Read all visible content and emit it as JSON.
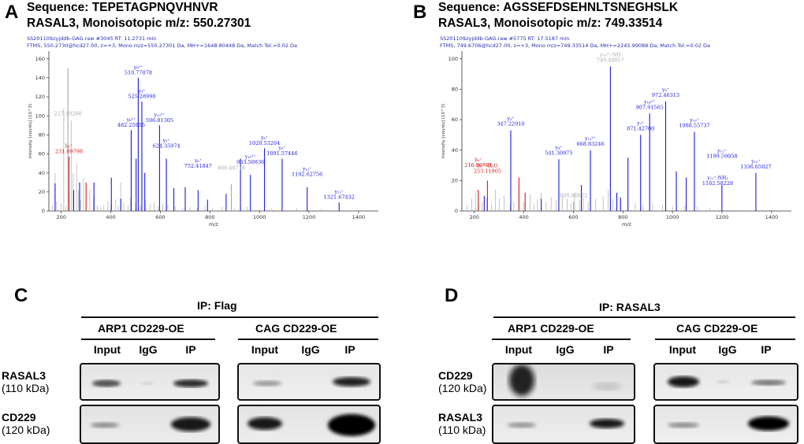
{
  "panels": {
    "A": {
      "letter": "A",
      "line1": "Sequence: TEPETAGPNQVHNVR",
      "line2": "RASAL3, Monoisotopic m/z: 550.27301",
      "header1": "SS201109zyjddb-GAG.raw  #3045  RT: 11.2731 min",
      "header2": "FTMS, 550.2730@hcd27.00, z=+3, Mono m/z=550.27301 Da, MH+=1648.80448 Da, Match Tol.=0.02 Da",
      "ylabel": "Intensity [counts] (10^3)",
      "xlabel": "m/z"
    },
    "B": {
      "letter": "B",
      "line1": "Sequence: AGSSEFDSEHNLTSNEGHSLK",
      "line2": "RASAL3, Monoisotopic m/z: 749.33514",
      "header1": "SS201109zyjddb-GAG.raw  #5775  RT: 17.5187 min",
      "header2": "FTMS, 749.6706@hcd27.00, z=+3, Mono m/z=749.33514 Da, MH+=2245.99088 Da, Match Tol.=0.02 Da",
      "ylabel": "Intensity [counts] (10^3)",
      "xlabel": "m/z"
    },
    "C": {
      "letter": "C",
      "ip_title": "IP: Flag",
      "groups": [
        "ARP1 CD229-OE",
        "CAG CD229-OE"
      ],
      "lanes": [
        "Input",
        "IgG",
        "IP"
      ],
      "rows": [
        {
          "protein": "RASAL3",
          "kda": "(110 kDa)"
        },
        {
          "protein": "CD229",
          "kda": "(120 kDa)"
        }
      ]
    },
    "D": {
      "letter": "D",
      "ip_title": "IP: RASAL3",
      "groups": [
        "ARP1 CD229-OE",
        "CAG CD229-OE"
      ],
      "lanes": [
        "Input",
        "IgG",
        "IP"
      ],
      "rows": [
        {
          "protein": "CD229",
          "kda": "(120 kDa)"
        },
        {
          "protein": "RASAL3",
          "kda": "(110 kDa)"
        }
      ]
    }
  },
  "chart_data": [
    {
      "type": "bar",
      "panel": "A",
      "xlim": [
        150,
        1480
      ],
      "ylim": [
        0,
        168
      ],
      "xticks": [
        200,
        400,
        600,
        800,
        1000,
        1200,
        1400
      ],
      "yticks": [
        0,
        20,
        40,
        60,
        80,
        100,
        120,
        140,
        160
      ],
      "background_peaks": [
        [
          165,
          6
        ],
        [
          175,
          40
        ],
        [
          182,
          10
        ],
        [
          200,
          8
        ],
        [
          210,
          108
        ],
        [
          218,
          5
        ],
        [
          232,
          14
        ],
        [
          240,
          95
        ],
        [
          248,
          40
        ],
        [
          262,
          50
        ],
        [
          270,
          22
        ],
        [
          278,
          12
        ],
        [
          290,
          35
        ],
        [
          300,
          8
        ],
        [
          315,
          22
        ],
        [
          330,
          15
        ],
        [
          345,
          6
        ],
        [
          360,
          4
        ],
        [
          372,
          6
        ],
        [
          388,
          10
        ],
        [
          400,
          7
        ],
        [
          420,
          12
        ],
        [
          430,
          5
        ],
        [
          440,
          30
        ],
        [
          452,
          8
        ],
        [
          470,
          6
        ],
        [
          480,
          14
        ],
        [
          500,
          9
        ],
        [
          520,
          6
        ],
        [
          540,
          12
        ],
        [
          560,
          7
        ],
        [
          575,
          9
        ],
        [
          590,
          5
        ],
        [
          610,
          8
        ],
        [
          630,
          6
        ],
        [
          660,
          5
        ],
        [
          690,
          3
        ],
        [
          720,
          4
        ],
        [
          750,
          3
        ],
        [
          780,
          5
        ],
        [
          810,
          3
        ],
        [
          850,
          4
        ],
        [
          900,
          3
        ],
        [
          950,
          4
        ],
        [
          1050,
          3
        ],
        [
          1150,
          3
        ],
        [
          1250,
          2
        ]
      ],
      "peaks": [
        {
          "mz": 175.1,
          "y": 29,
          "color": "blue",
          "label": "y₁"
        },
        {
          "mz": 227.1,
          "y": 150,
          "color": "gray",
          "label": ""
        },
        {
          "mz": 231.1,
          "y": 57,
          "color": "red",
          "label": ""
        },
        {
          "mz": 250.1,
          "y": 22,
          "color": "blue",
          "label": "y₂"
        },
        {
          "mz": 274.1,
          "y": 30,
          "color": "blue",
          "label": "y₂"
        },
        {
          "mz": 300.1,
          "y": 30,
          "color": "red",
          "label": ""
        },
        {
          "mz": 332.1,
          "y": 30,
          "color": "blue",
          "label": ""
        },
        {
          "mz": 402.2,
          "y": 35,
          "color": "blue",
          "label": ""
        },
        {
          "mz": 440.2,
          "y": 13,
          "color": "blue",
          "label": ""
        },
        {
          "mz": 482.3,
          "y": 85,
          "color": "blue",
          "label": ""
        },
        {
          "mz": 502.2,
          "y": 55,
          "color": "blue",
          "label": ""
        },
        {
          "mz": 510.8,
          "y": 140,
          "color": "blue",
          "label": ""
        },
        {
          "mz": 525.3,
          "y": 115,
          "color": "blue",
          "label": ""
        },
        {
          "mz": 537.2,
          "y": 40,
          "color": "blue",
          "label": ""
        },
        {
          "mz": 596.8,
          "y": 90,
          "color": "blue",
          "label": ""
        },
        {
          "mz": 624.4,
          "y": 55,
          "color": "blue",
          "label": ""
        },
        {
          "mz": 654.4,
          "y": 24,
          "color": "blue",
          "label": ""
        },
        {
          "mz": 700.4,
          "y": 25,
          "color": "blue",
          "label": ""
        },
        {
          "mz": 752.4,
          "y": 22,
          "color": "blue",
          "label": ""
        },
        {
          "mz": 790.4,
          "y": 12,
          "color": "blue",
          "label": ""
        },
        {
          "mz": 865.4,
          "y": 18,
          "color": "blue",
          "label": ""
        },
        {
          "mz": 886.5,
          "y": 28,
          "color": "gray",
          "label": ""
        },
        {
          "mz": 923.5,
          "y": 55,
          "color": "blue",
          "label": ""
        },
        {
          "mz": 963.5,
          "y": 38,
          "color": "blue",
          "label": ""
        },
        {
          "mz": 1020.5,
          "y": 66,
          "color": "blue",
          "label": ""
        },
        {
          "mz": 1091.6,
          "y": 55,
          "color": "blue",
          "label": ""
        },
        {
          "mz": 1192.6,
          "y": 25,
          "color": "blue",
          "label": ""
        },
        {
          "mz": 1321.7,
          "y": 9,
          "color": "blue",
          "label": ""
        }
      ],
      "annotations": [
        {
          "text": "510.77078",
          "mz": 510.8,
          "y": 142,
          "color": "blue",
          "sup": "y₈²⁺"
        },
        {
          "text": "525.28998",
          "mz": 525.3,
          "y": 117,
          "color": "blue",
          "sup": "y₄⁺"
        },
        {
          "text": "227.10260",
          "mz": 227.1,
          "y": 99,
          "color": "gray",
          "sup": ""
        },
        {
          "text": "482.25955",
          "mz": 482.3,
          "y": 87,
          "color": "blue",
          "sup": "y₈²⁺"
        },
        {
          "text": "596.81305",
          "mz": 596.8,
          "y": 92,
          "color": "blue",
          "sup": "y₁₀²⁺"
        },
        {
          "text": "624.35974",
          "mz": 624.4,
          "y": 65,
          "color": "blue",
          "sup": "y₅⁺"
        },
        {
          "text": "231.09798",
          "mz": 231.1,
          "y": 59,
          "color": "red",
          "sup": "b₂⁺"
        },
        {
          "text": "752.41847",
          "mz": 752.4,
          "y": 44,
          "color": "blue",
          "sup": "y₆⁺"
        },
        {
          "text": "886.46718",
          "mz": 886.5,
          "y": 42,
          "color": "gray",
          "sup": ""
        },
        {
          "text": "963.50836",
          "mz": 963.5,
          "y": 48,
          "color": "blue",
          "sup": "y₁₅²⁺"
        },
        {
          "text": "1020.53204",
          "mz": 1020.5,
          "y": 68,
          "color": "blue",
          "sup": "y₈⁺"
        },
        {
          "text": "1091.57446",
          "mz": 1091.6,
          "y": 57,
          "color": "blue",
          "sup": "y₉⁺"
        },
        {
          "text": "1192.62756",
          "mz": 1192.6,
          "y": 35,
          "color": "blue",
          "sup": "y₁₂⁺"
        },
        {
          "text": "1321.67432",
          "mz": 1321.7,
          "y": 11,
          "color": "blue",
          "sup": "y₁₁⁺"
        }
      ]
    },
    {
      "type": "bar",
      "panel": "B",
      "xlim": [
        150,
        1480
      ],
      "ylim": [
        0,
        105
      ],
      "xticks": [
        200,
        400,
        600,
        800,
        1000,
        1200,
        1400
      ],
      "yticks": [
        0,
        20,
        40,
        60,
        80,
        100
      ],
      "background_peaks": [
        [
          170,
          4
        ],
        [
          190,
          8
        ],
        [
          205,
          12
        ],
        [
          218,
          4
        ],
        [
          232,
          6
        ],
        [
          250,
          9
        ],
        [
          270,
          5
        ],
        [
          285,
          14
        ],
        [
          300,
          8
        ],
        [
          320,
          10
        ],
        [
          345,
          4
        ],
        [
          360,
          6
        ],
        [
          380,
          9
        ],
        [
          400,
          6
        ],
        [
          425,
          11
        ],
        [
          440,
          5
        ],
        [
          455,
          8
        ],
        [
          470,
          12
        ],
        [
          490,
          6
        ],
        [
          510,
          9
        ],
        [
          530,
          7
        ],
        [
          555,
          10
        ],
        [
          575,
          8
        ],
        [
          590,
          5
        ],
        [
          605,
          12
        ],
        [
          625,
          7
        ],
        [
          640,
          9
        ],
        [
          660,
          6
        ],
        [
          690,
          8
        ],
        [
          720,
          10
        ],
        [
          740,
          14
        ],
        [
          760,
          8
        ],
        [
          790,
          6
        ],
        [
          820,
          7
        ],
        [
          850,
          5
        ],
        [
          880,
          4
        ],
        [
          920,
          5
        ],
        [
          960,
          4
        ],
        [
          1000,
          3
        ],
        [
          1050,
          4
        ],
        [
          1100,
          3
        ],
        [
          1150,
          2
        ]
      ],
      "peaks": [
        {
          "mz": 216.1,
          "y": 14,
          "color": "red",
          "label": ""
        },
        {
          "mz": 240.1,
          "y": 10,
          "color": "blue",
          "label": ""
        },
        {
          "mz": 253.1,
          "y": 20,
          "color": "red",
          "label": ""
        },
        {
          "mz": 347.2,
          "y": 53,
          "color": "blue",
          "label": ""
        },
        {
          "mz": 380.2,
          "y": 22,
          "color": "red",
          "label": ""
        },
        {
          "mz": 405.2,
          "y": 12,
          "color": "red",
          "label": ""
        },
        {
          "mz": 470.2,
          "y": 8,
          "color": "blue",
          "label": ""
        },
        {
          "mz": 541.3,
          "y": 34,
          "color": "blue",
          "label": ""
        },
        {
          "mz": 600.8,
          "y": 6,
          "color": "gray",
          "label": ""
        },
        {
          "mz": 632.3,
          "y": 17,
          "color": "blue",
          "label": ""
        },
        {
          "mz": 668.8,
          "y": 40,
          "color": "blue",
          "label": ""
        },
        {
          "mz": 749.4,
          "y": 95,
          "color": "blue",
          "label": ""
        },
        {
          "mz": 775.4,
          "y": 12,
          "color": "blue",
          "label": ""
        },
        {
          "mz": 790.4,
          "y": 9,
          "color": "blue",
          "label": ""
        },
        {
          "mz": 820.4,
          "y": 35,
          "color": "blue",
          "label": ""
        },
        {
          "mz": 871.4,
          "y": 50,
          "color": "blue",
          "label": ""
        },
        {
          "mz": 907.9,
          "y": 64,
          "color": "blue",
          "label": ""
        },
        {
          "mz": 972.5,
          "y": 72,
          "color": "blue",
          "label": ""
        },
        {
          "mz": 1015.5,
          "y": 26,
          "color": "blue",
          "label": ""
        },
        {
          "mz": 1055.5,
          "y": 22,
          "color": "blue",
          "label": ""
        },
        {
          "mz": 1088.6,
          "y": 52,
          "color": "blue",
          "label": ""
        },
        {
          "mz": 1199.6,
          "y": 17,
          "color": "blue",
          "label": ""
        },
        {
          "mz": 1336.7,
          "y": 25,
          "color": "blue",
          "label": ""
        }
      ],
      "annotations": [
        {
          "text": "749.40057",
          "mz": 749.4,
          "y": 97,
          "color": "gray",
          "sup": "y₁₄²⁺-NH"
        },
        {
          "text": "972.46313",
          "mz": 972.5,
          "y": 74,
          "color": "blue",
          "sup": "y₈⁺"
        },
        {
          "text": "907.91565",
          "mz": 907.9,
          "y": 66,
          "color": "blue",
          "sup": "y₁₆²⁺"
        },
        {
          "text": "347.22910",
          "mz": 347.2,
          "y": 55,
          "color": "blue",
          "sup": "y₃⁺"
        },
        {
          "text": "1088.55737",
          "mz": 1088.6,
          "y": 54,
          "color": "blue",
          "sup": "y₁₀⁺"
        },
        {
          "text": "871.42700",
          "mz": 871.4,
          "y": 52,
          "color": "blue",
          "sup": "y₇⁺"
        },
        {
          "text": "668.83246",
          "mz": 668.8,
          "y": 42,
          "color": "blue",
          "sup": "y₁₂²⁺"
        },
        {
          "text": "541.30975",
          "mz": 541.3,
          "y": 36,
          "color": "blue",
          "sup": "y₄⁺"
        },
        {
          "text": "216.09781",
          "mz": 216.1,
          "y": 28,
          "color": "red",
          "sup": "b₃⁺"
        },
        {
          "text": "253.11905",
          "mz": 253.1,
          "y": 24,
          "color": "red",
          "sup": "b₅²⁺-H₂O"
        },
        {
          "text": "600.80872",
          "mz": 600.8,
          "y": 8,
          "color": "gray",
          "sup": ""
        },
        {
          "text": "1199.59058",
          "mz": 1199.6,
          "y": 34,
          "color": "blue",
          "sup": "y₁₁⁺"
        },
        {
          "text": "1336.65027",
          "mz": 1336.7,
          "y": 27,
          "color": "blue",
          "sup": "y₁₂⁺"
        },
        {
          "text": "1182.58228",
          "mz": 1182.6,
          "y": 16,
          "color": "blue",
          "sup": "y₁₁⁺-NH₃"
        }
      ]
    }
  ]
}
